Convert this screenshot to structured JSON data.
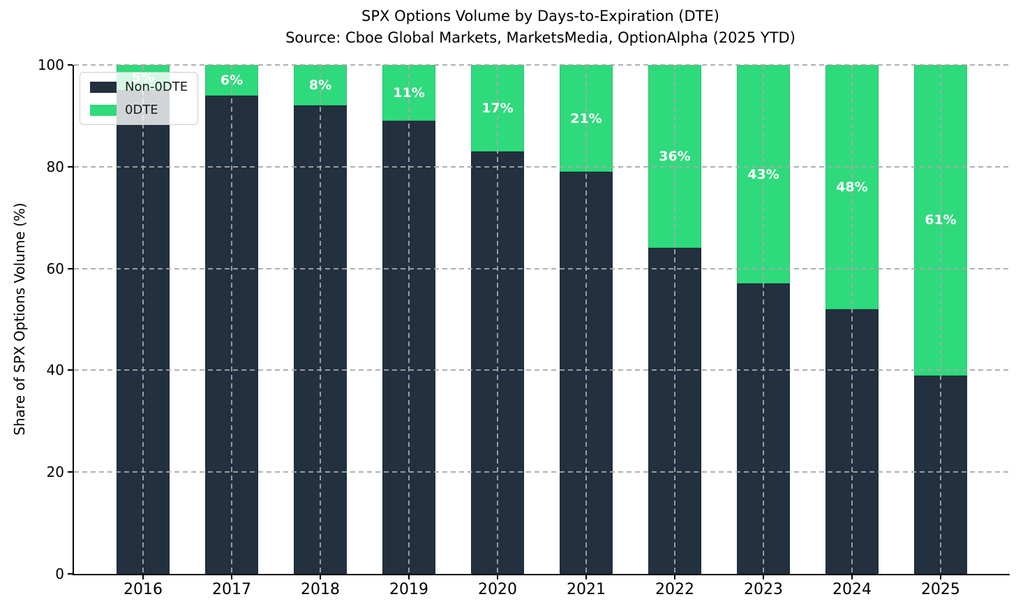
{
  "title": {
    "line1": "SPX Options Volume by Days-to-Expiration (DTE)",
    "line2": "Source: Cboe Global Markets, MarketsMedia, OptionAlpha (2025 YTD)"
  },
  "ylabel": "Share of SPX Options Volume (%)",
  "colors": {
    "non_0dte": "#22303F",
    "odte": "#2EDA7C",
    "grid": "#A8A8A8",
    "bar_label_text": "#FFFFFF",
    "axis": "#000000"
  },
  "legend": {
    "position": "upper left",
    "items": [
      {
        "label": "Non-0DTE",
        "color": "#22303F"
      },
      {
        "label": "0DTE",
        "color": "#2EDA7C"
      }
    ]
  },
  "chart_data": {
    "type": "bar",
    "stacked": true,
    "title": "SPX Options Volume by Days-to-Expiration (DTE)",
    "subtitle": "Source: Cboe Global Markets, MarketsMedia, OptionAlpha (2025 YTD)",
    "xlabel": "",
    "ylabel": "Share of SPX Options Volume (%)",
    "ylim": [
      0,
      100
    ],
    "yticks": [
      0,
      20,
      40,
      60,
      80,
      100
    ],
    "grid": "dashed gridlines on both axes, drawn above bars",
    "legend_position": "upper left",
    "categories": [
      "2016",
      "2017",
      "2018",
      "2019",
      "2020",
      "2021",
      "2022",
      "2023",
      "2024",
      "2025"
    ],
    "series": [
      {
        "name": "Non-0DTE",
        "color": "#22303F",
        "values": [
          95,
          94,
          92,
          89,
          83,
          79,
          64,
          57,
          52,
          39
        ]
      },
      {
        "name": "0DTE",
        "color": "#2EDA7C",
        "values": [
          5,
          6,
          8,
          11,
          17,
          21,
          36,
          43,
          48,
          61
        ]
      }
    ],
    "bar_labels": [
      "5%",
      "6%",
      "8%",
      "11%",
      "17%",
      "21%",
      "36%",
      "43%",
      "48%",
      "61%"
    ]
  }
}
